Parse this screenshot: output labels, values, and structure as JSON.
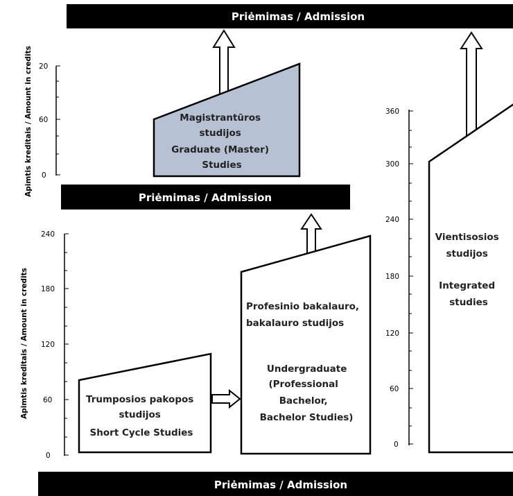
{
  "admission_label": "Priėmimas / Admission",
  "ylabel": "Apimtis kreditais / Amount in credits",
  "top_axis_ticks": [
    "20",
    "60",
    "0"
  ],
  "bottom_axis_ticks": [
    "240",
    "180",
    "120",
    "60",
    "0"
  ],
  "right_axis_ticks": [
    "360",
    "300",
    "240",
    "180",
    "120",
    "60",
    "0"
  ],
  "master_box": [
    "Magistrantūros",
    "studijos",
    "Graduate (Master)",
    "Studies"
  ],
  "short_cycle_box": [
    "Trumposios pakopos",
    "studijos",
    "Short Cycle Studies"
  ],
  "undergrad_box": [
    "Profesinio bakalauro,",
    "bakalauro studijos",
    "Undergraduate",
    "(Professional",
    "Bachelor,",
    "Bachelor Studies)"
  ],
  "integrated_box": [
    "Vientisosios",
    "studijos",
    "Integrated",
    "studies"
  ],
  "colors": {
    "bar": "#000000",
    "master_fill": "#b7c1d4",
    "box_fill": "#ffffff"
  }
}
